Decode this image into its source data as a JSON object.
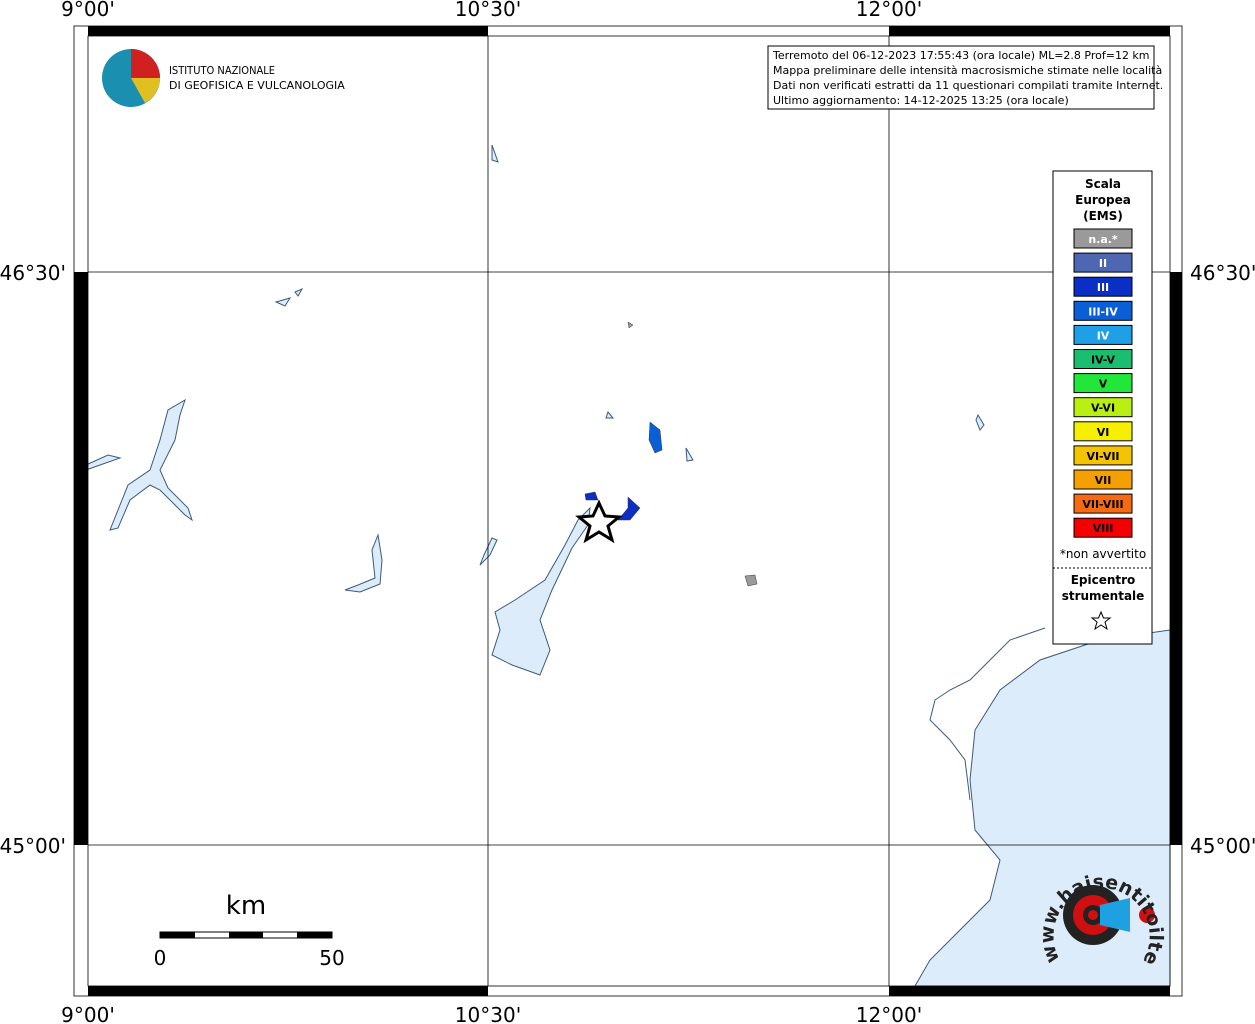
{
  "map": {
    "lon_labels": [
      "9°00'",
      "10°30'",
      "12°00'"
    ],
    "lat_labels": [
      "46°30'",
      "45°00'"
    ],
    "institute": [
      "ISTITUTO NAZIONALE",
      "DI GEOFISICA E VULCANOLOGIA"
    ],
    "info": [
      "Terremoto del 06-12-2023 17:55:43 (ora locale) ML=2.8 Prof=12 km",
      "Mappa preliminare delle intensità macrosismiche stimate nelle località",
      "Dati non verificati estratti da 11 questionari compilati tramite Internet.",
      "Ultimo aggiornamento: 14-12-2025 13:25 (ora locale)"
    ],
    "legend": {
      "title": [
        "Scala",
        "Europea",
        "(EMS)"
      ],
      "items": [
        {
          "label": "n.a.*",
          "color": "#9a9a9a"
        },
        {
          "label": "II",
          "color": "#4f67b3"
        },
        {
          "label": "III",
          "color": "#0b2fc4"
        },
        {
          "label": "III-IV",
          "color": "#0b5fd6"
        },
        {
          "label": "IV",
          "color": "#1e9fe6"
        },
        {
          "label": "IV-V",
          "color": "#1bbd6e"
        },
        {
          "label": "V",
          "color": "#22e63a"
        },
        {
          "label": "V-VI",
          "color": "#b9ef12"
        },
        {
          "label": "VI",
          "color": "#f6f000"
        },
        {
          "label": "VI-VII",
          "color": "#f5c400"
        },
        {
          "label": "VII",
          "color": "#f6a000"
        },
        {
          "label": "VII-VIII",
          "color": "#f66a12"
        },
        {
          "label": "VIII",
          "color": "#f40000"
        }
      ],
      "note": "*non avvertito",
      "epicentre": [
        "Epicentro",
        "strumentale"
      ]
    },
    "scale": {
      "unit": "km",
      "labels": [
        "0",
        "50"
      ]
    },
    "logo_text": "www.haisentitoilterremoto.it"
  }
}
